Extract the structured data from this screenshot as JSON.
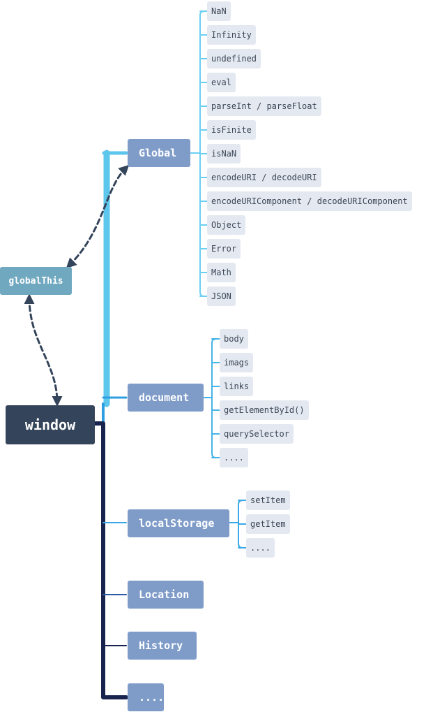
{
  "colors": {
    "trunk_global": "#5cc6ec",
    "trunk_mid": "#2f9ee0",
    "trunk_navy": "#19244e",
    "branch_global": "#6ccff2",
    "branch_document": "#45b4e6",
    "branch_local": "#3aa8e6",
    "branch_location": "#2d5aa6",
    "dashed": "#34445a"
  },
  "root": {
    "label": "window"
  },
  "global_this": {
    "label": "globalThis"
  },
  "global": {
    "label": "Global",
    "children": [
      "NaN",
      "Infinity",
      "undefined",
      "eval",
      "parseInt / parseFloat",
      "isFinite",
      "isNaN",
      "encodeURI / decodeURI",
      "encodeURIComponent / decodeURIComponent",
      "Object",
      "Error",
      "Math",
      "JSON"
    ]
  },
  "document": {
    "label": "document",
    "children": [
      "body",
      "imags",
      "links",
      "getElementById()",
      "querySelector",
      "...."
    ]
  },
  "local_storage": {
    "label": "localStorage",
    "children": [
      "setItem",
      "getItem",
      "...."
    ]
  },
  "location": {
    "label": "Location"
  },
  "history": {
    "label": "History"
  },
  "more": {
    "label": "...."
  }
}
